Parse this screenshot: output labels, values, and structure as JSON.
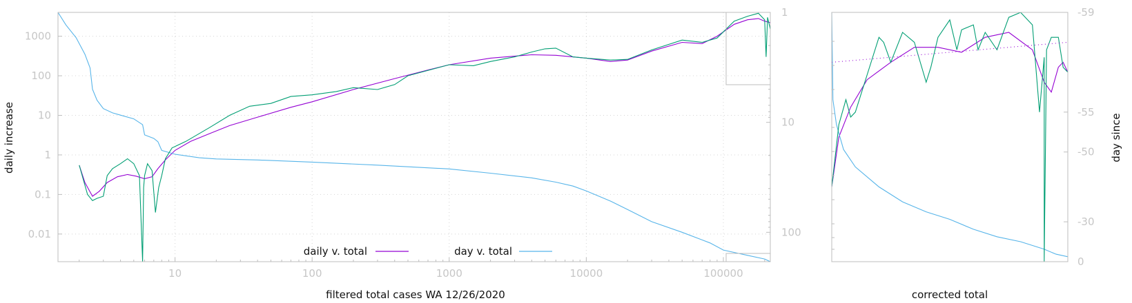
{
  "chart_data": [
    {
      "type": "line",
      "title": "",
      "xlabel": "filtered total cases WA 12/26/2020",
      "ylabel": "daily increase",
      "y2label": "",
      "xscale": "log",
      "yscale": "log",
      "y2scale": "log",
      "xlim": [
        1.4,
        220000
      ],
      "ylim": [
        0.002,
        4000
      ],
      "y2lim": [
        1,
        185
      ],
      "x_ticks": [
        "10",
        "100",
        "1000",
        "10000",
        "100000"
      ],
      "y_ticks": [
        "0.01",
        "0.1",
        "1",
        "10",
        "100",
        "1000"
      ],
      "y2_ticks": [
        "1",
        "10",
        "100"
      ],
      "grid": true,
      "legend": "bottom-center",
      "colors": {
        "daily v. total": "#9400d3",
        "day v. total": "#56b4e9",
        "raw": "#009e73"
      },
      "series": [
        {
          "name": "daily v. total",
          "color": "#9400d3",
          "axis": "left",
          "x": [
            2,
            2.2,
            2.5,
            2.8,
            3.2,
            3.8,
            4.5,
            5.2,
            6,
            6.8,
            7.5,
            8.5,
            10,
            13,
            18,
            25,
            40,
            70,
            100,
            200,
            400,
            700,
            1000,
            2000,
            4000,
            6000,
            10000,
            15000,
            20000,
            30000,
            50000,
            70000,
            90000,
            120000,
            150000,
            180000,
            200000,
            220000
          ],
          "y": [
            0.55,
            0.2,
            0.09,
            0.12,
            0.2,
            0.28,
            0.32,
            0.29,
            0.25,
            0.28,
            0.45,
            0.75,
            1.3,
            2.2,
            3.5,
            5.5,
            9,
            16,
            22,
            45,
            85,
            140,
            190,
            280,
            340,
            330,
            280,
            230,
            250,
            420,
            700,
            650,
            1000,
            2000,
            2600,
            2800,
            2400,
            2200
          ]
        },
        {
          "name": "day v. total",
          "color": "#56b4e9",
          "axis": "right",
          "x": [
            1.4,
            1.6,
            1.9,
            2.2,
            2.4,
            2.5,
            2.7,
            3,
            3.5,
            4,
            5,
            5.8,
            6,
            7,
            7.5,
            8,
            10,
            15,
            20,
            40,
            100,
            300,
            1000,
            2000,
            4000,
            6000,
            8000,
            10000,
            15000,
            20000,
            30000,
            50000,
            80000,
            100000,
            150000,
            200000,
            220000
          ],
          "y": [
            1,
            1.3,
            1.7,
            2.4,
            3.2,
            5,
            6.3,
            7.5,
            8.2,
            8.6,
            9.3,
            10.5,
            13,
            14,
            15,
            18,
            19.5,
            21,
            21.5,
            22,
            23,
            24.5,
            26.5,
            29,
            32,
            35,
            38,
            42,
            52,
            62,
            80,
            100,
            125,
            145,
            162,
            175,
            185
          ]
        },
        {
          "name": "",
          "color": "#009e73",
          "axis": "left",
          "x": [
            2,
            2.3,
            2.5,
            2.7,
            3,
            3.2,
            3.5,
            4,
            4.5,
            5,
            5.5,
            5.8,
            5.9,
            6,
            6.3,
            6.8,
            7.2,
            7.6,
            8,
            8.5,
            9.5,
            12,
            18,
            25,
            35,
            50,
            70,
            100,
            150,
            200,
            300,
            400,
            500,
            1000,
            1500,
            2000,
            3000,
            4000,
            5000,
            6000,
            8000,
            10000,
            15000,
            20000,
            30000,
            50000,
            70000,
            90000,
            120000,
            150000,
            180000,
            200000,
            205000,
            210000,
            220000
          ],
          "y": [
            0.55,
            0.1,
            0.07,
            0.08,
            0.09,
            0.3,
            0.45,
            0.6,
            0.8,
            0.6,
            0.3,
            0.002,
            0.15,
            0.3,
            0.6,
            0.4,
            0.035,
            0.15,
            0.3,
            0.8,
            1.5,
            2.2,
            5,
            10,
            17,
            20,
            30,
            33,
            40,
            50,
            45,
            60,
            100,
            190,
            180,
            230,
            300,
            400,
            480,
            500,
            300,
            280,
            250,
            260,
            450,
            800,
            700,
            900,
            2400,
            3200,
            3800,
            2600,
            300,
            3000,
            1500
          ]
        }
      ]
    },
    {
      "type": "line",
      "title": "",
      "xlabel": "corrected total",
      "ylabel": "",
      "y2label": "day since",
      "y2_ticks": [
        "-59",
        "-55",
        "-50",
        "-30",
        "0"
      ],
      "grid": false,
      "series": [
        {
          "name": "",
          "color": "#9400d3",
          "x": [
            0,
            0.03,
            0.08,
            0.15,
            0.25,
            0.35,
            0.45,
            0.55,
            0.65,
            0.75,
            0.85,
            0.9,
            0.93,
            0.96,
            0.98,
            1
          ],
          "y": [
            0.3,
            0.5,
            0.62,
            0.73,
            0.8,
            0.86,
            0.86,
            0.84,
            0.9,
            0.92,
            0.85,
            0.72,
            0.68,
            0.78,
            0.8,
            0.76
          ]
        },
        {
          "name": "",
          "color": "#56b4e9",
          "x": [
            0,
            0.005,
            0.02,
            0.05,
            0.1,
            0.2,
            0.3,
            0.4,
            0.5,
            0.6,
            0.7,
            0.8,
            0.9,
            0.95,
            1
          ],
          "y": [
            1,
            0.65,
            0.55,
            0.45,
            0.38,
            0.3,
            0.24,
            0.2,
            0.17,
            0.13,
            0.1,
            0.08,
            0.05,
            0.03,
            0.02
          ]
        },
        {
          "name": "",
          "color": "#009e73",
          "x": [
            0,
            0.03,
            0.06,
            0.08,
            0.1,
            0.15,
            0.2,
            0.22,
            0.25,
            0.3,
            0.35,
            0.4,
            0.42,
            0.45,
            0.5,
            0.53,
            0.55,
            0.6,
            0.62,
            0.65,
            0.7,
            0.75,
            0.8,
            0.85,
            0.88,
            0.9,
            0.9,
            0.91,
            0.93,
            0.96,
            0.98,
            1
          ],
          "y": [
            0.3,
            0.55,
            0.65,
            0.58,
            0.6,
            0.75,
            0.9,
            0.88,
            0.8,
            0.92,
            0.88,
            0.72,
            0.78,
            0.9,
            0.97,
            0.85,
            0.93,
            0.95,
            0.85,
            0.92,
            0.85,
            0.98,
            1.0,
            0.95,
            0.6,
            0.82,
            0.0,
            0.85,
            0.9,
            0.9,
            0.78,
            0.76
          ]
        },
        {
          "name": "",
          "color": "#9400d3",
          "dotted": true,
          "x": [
            0,
            0.25,
            0.5,
            0.75,
            1
          ],
          "y": [
            0.8,
            0.82,
            0.84,
            0.86,
            0.88
          ]
        }
      ]
    }
  ],
  "legend": {
    "entries": [
      {
        "label": "daily v. total",
        "color": "#9400d3"
      },
      {
        "label": "day v. total",
        "color": "#56b4e9"
      }
    ]
  }
}
